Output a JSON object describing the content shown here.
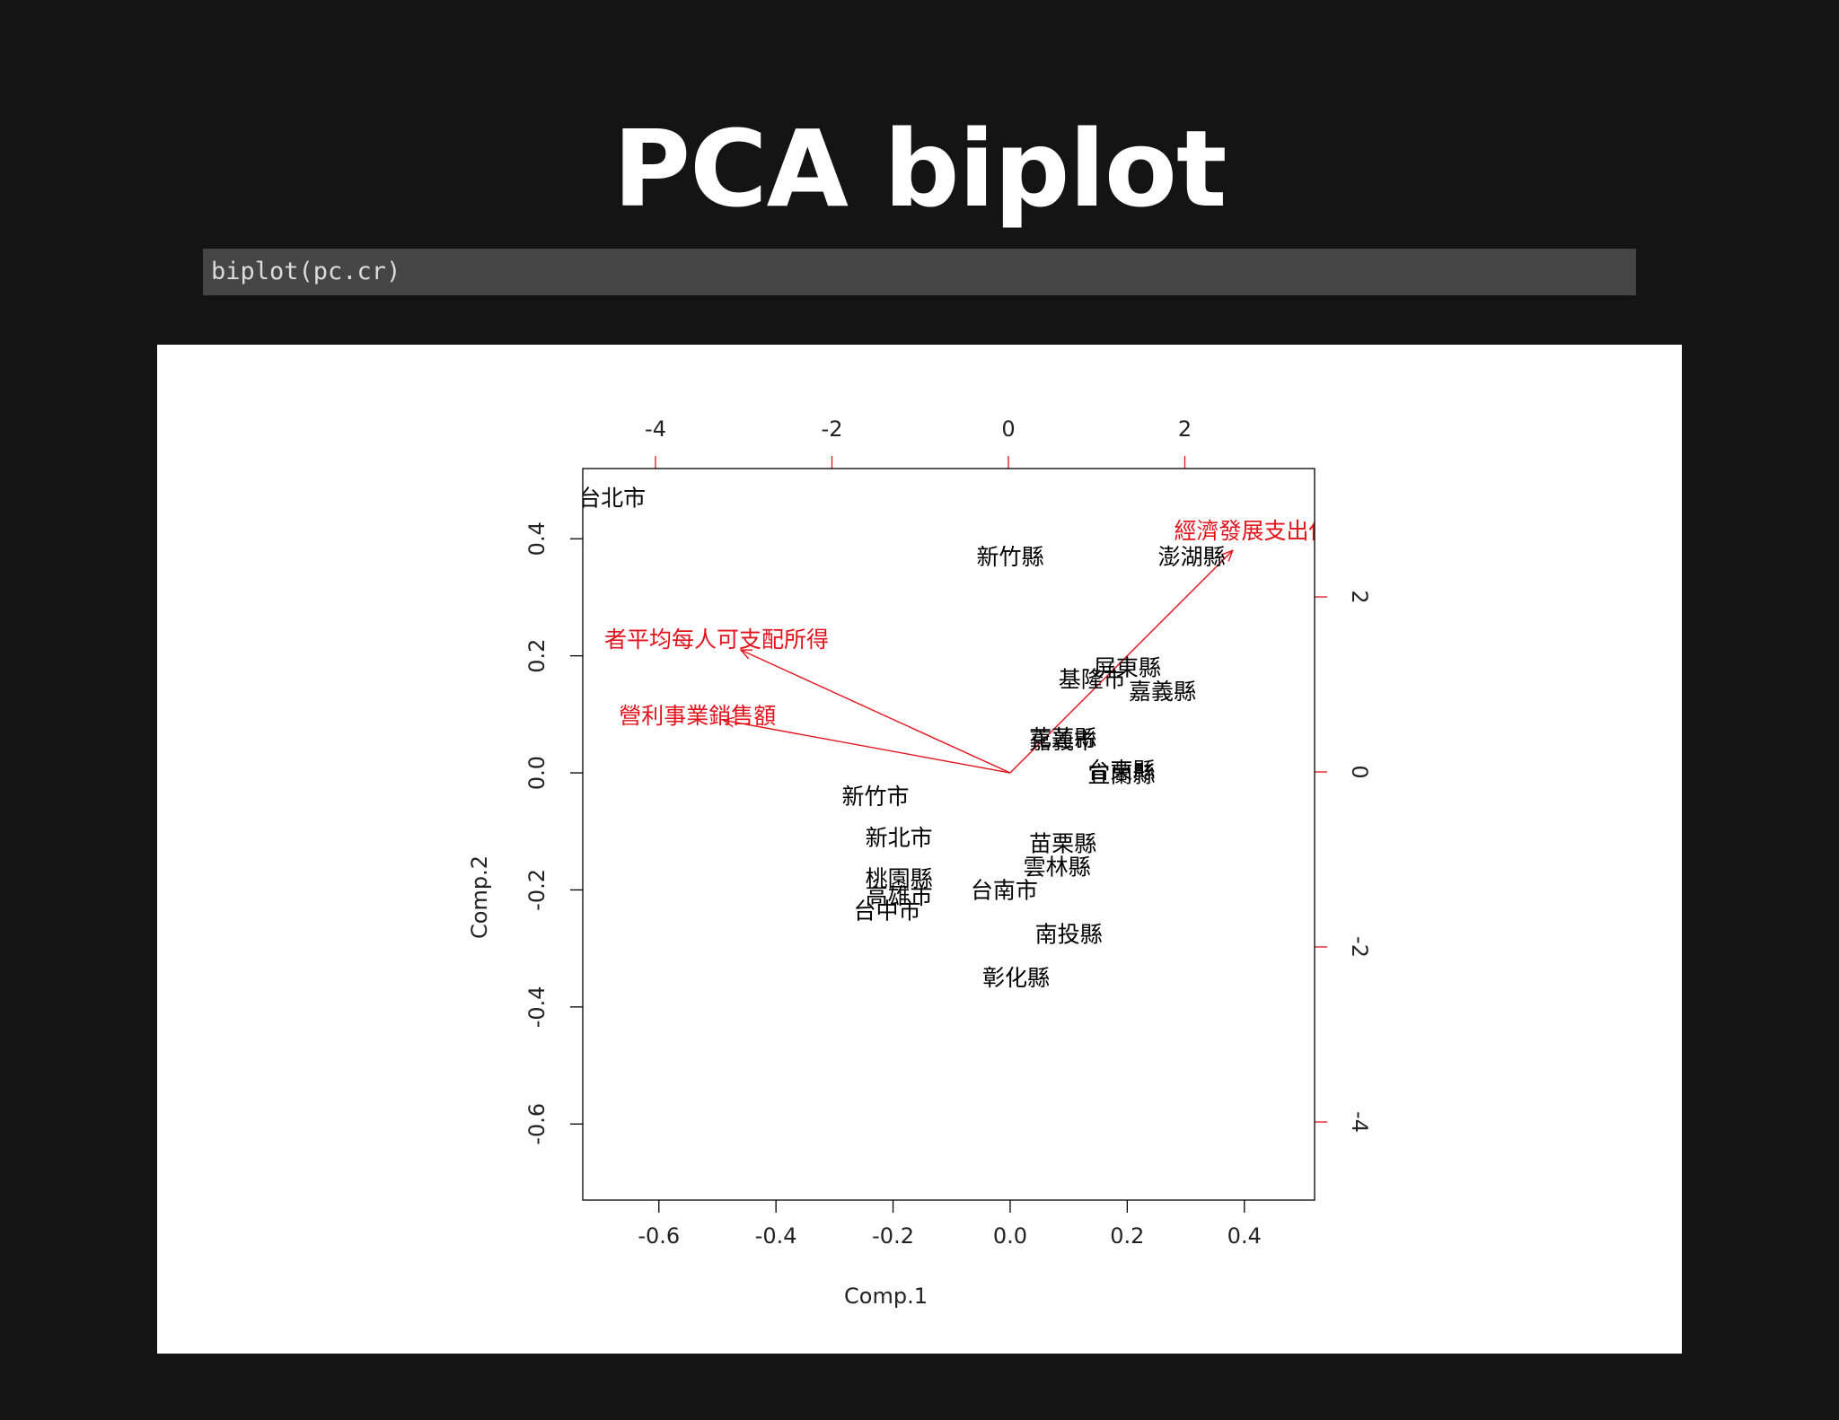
{
  "slide": {
    "title": "PCA biplot",
    "code": "biplot(pc.cr)"
  },
  "colors": {
    "background": "#141414",
    "code_background": "#454545",
    "points": "#000000",
    "loadings": "#e3131c"
  },
  "chart_data": {
    "type": "scatter",
    "subtype": "biplot",
    "xlabel": "Comp.1",
    "ylabel": "Comp.2",
    "xlim": [
      -0.73,
      0.52
    ],
    "ylim": [
      -0.73,
      0.52
    ],
    "x_ticks": [
      "-0.6",
      "-0.4",
      "-0.2",
      "0.0",
      "0.2",
      "0.4"
    ],
    "y_ticks": [
      "-0.6",
      "-0.4",
      "-0.2",
      "0.0",
      "0.2",
      "0.4"
    ],
    "secondary_x_ticks": [
      "-4",
      "-2",
      "0",
      "2"
    ],
    "secondary_y_ticks": [
      "-4",
      "-2",
      "0",
      "2"
    ],
    "observations": [
      {
        "label": "台北市",
        "x": -0.68,
        "y": 0.47
      },
      {
        "label": "新竹縣",
        "x": 0.0,
        "y": 0.37
      },
      {
        "label": "澎湖縣",
        "x": 0.31,
        "y": 0.37
      },
      {
        "label": "屏東縣",
        "x": 0.2,
        "y": 0.18
      },
      {
        "label": "基隆市",
        "x": 0.14,
        "y": 0.16
      },
      {
        "label": "嘉義縣",
        "x": 0.26,
        "y": 0.14
      },
      {
        "label": "花蓮縣",
        "x": 0.09,
        "y": 0.06
      },
      {
        "label": "嘉義市",
        "x": 0.09,
        "y": 0.055
      },
      {
        "label": "台東縣",
        "x": 0.19,
        "y": 0.005
      },
      {
        "label": "宜蘭縣",
        "x": 0.19,
        "y": -0.002
      },
      {
        "label": "新竹市",
        "x": -0.23,
        "y": -0.04
      },
      {
        "label": "新北市",
        "x": -0.19,
        "y": -0.11
      },
      {
        "label": "苗栗縣",
        "x": 0.09,
        "y": -0.12
      },
      {
        "label": "雲林縣",
        "x": 0.08,
        "y": -0.16
      },
      {
        "label": "桃園縣",
        "x": -0.19,
        "y": -0.18
      },
      {
        "label": "高雄市",
        "x": -0.19,
        "y": -0.21
      },
      {
        "label": "台中市",
        "x": -0.21,
        "y": -0.235
      },
      {
        "label": "台南市",
        "x": -0.01,
        "y": -0.2
      },
      {
        "label": "南投縣",
        "x": 0.1,
        "y": -0.275
      },
      {
        "label": "彰化縣",
        "x": 0.01,
        "y": -0.35
      }
    ],
    "loadings": [
      {
        "label": "經濟發展支出佔",
        "x": 0.38,
        "y": 0.38
      },
      {
        "label": "者平均每人可支配所得",
        "x": -0.46,
        "y": 0.21
      },
      {
        "label": "營利事業銷售額",
        "x": -0.49,
        "y": 0.09
      }
    ]
  }
}
